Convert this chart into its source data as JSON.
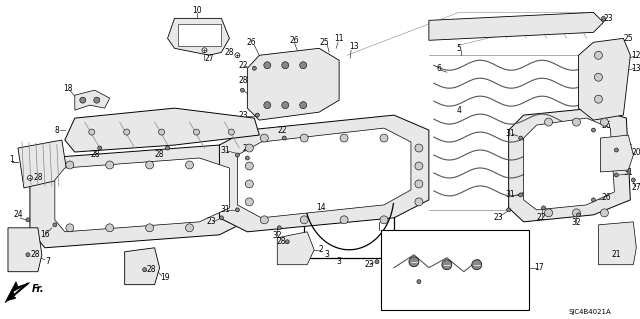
{
  "diagram_code": "SJC4B4021A",
  "bg_color": "#ffffff",
  "figsize": [
    6.4,
    3.19
  ],
  "dpi": 100,
  "lc": "#000000",
  "gray_dark": "#555555",
  "gray_mid": "#888888",
  "gray_light": "#bbbbbb",
  "gray_fill": "#cccccc",
  "gray_lightest": "#e8e8e8",
  "fs_label": 5.5,
  "fs_code": 5
}
